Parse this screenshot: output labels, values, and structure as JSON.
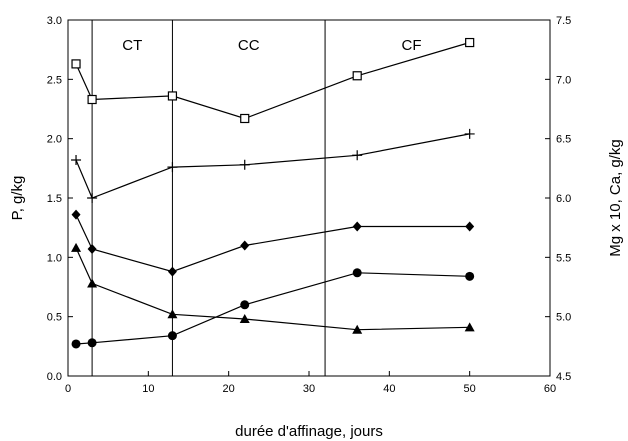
{
  "chart_data": {
    "type": "line",
    "title": "",
    "xlabel": "durée d'affinage, jours",
    "ylabel": "P, g/kg",
    "y2label": "Mg x 10, Ca, g/kg",
    "xlim": [
      0,
      60
    ],
    "ylim": [
      0.0,
      3.0
    ],
    "y2lim": [
      4.5,
      7.5
    ],
    "x_ticks": [
      "0",
      "10",
      "20",
      "30",
      "40",
      "50",
      "60"
    ],
    "y_ticks": [
      "0.0",
      "0.5",
      "1.0",
      "1.5",
      "2.0",
      "2.5",
      "3.0"
    ],
    "y2_ticks": [
      "4.5",
      "5.0",
      "5.5",
      "6.0",
      "6.5",
      "7.0",
      "7.5"
    ],
    "grid": false,
    "legend": "none",
    "phases": [
      {
        "label": "CT",
        "start": 3,
        "end": 13
      },
      {
        "label": "CC",
        "start": 13,
        "end": 32
      },
      {
        "label": "CF",
        "start": 32,
        "end": 60
      }
    ],
    "series": [
      {
        "marker": "square",
        "axis": "right",
        "x": [
          1,
          3,
          13,
          22,
          36,
          50
        ],
        "values": [
          7.13,
          6.83,
          6.86,
          6.67,
          7.03,
          7.31
        ]
      },
      {
        "marker": "plus",
        "axis": "right",
        "x": [
          1,
          3,
          13,
          22,
          36,
          50
        ],
        "values": [
          6.32,
          6.0,
          6.26,
          6.28,
          6.36,
          6.54
        ]
      },
      {
        "marker": "diamond",
        "axis": "left",
        "x": [
          1,
          3,
          13,
          22,
          36,
          50
        ],
        "values": [
          1.36,
          1.07,
          0.88,
          1.1,
          1.26,
          1.26
        ]
      },
      {
        "marker": "circle",
        "axis": "left",
        "x": [
          1,
          3,
          13,
          22,
          36,
          50
        ],
        "values": [
          0.27,
          0.28,
          0.34,
          0.6,
          0.87,
          0.84
        ]
      },
      {
        "marker": "triangle",
        "axis": "left",
        "x": [
          1,
          3,
          13,
          22,
          36,
          50
        ],
        "values": [
          1.08,
          0.78,
          0.52,
          0.48,
          0.39,
          0.41
        ]
      }
    ]
  }
}
